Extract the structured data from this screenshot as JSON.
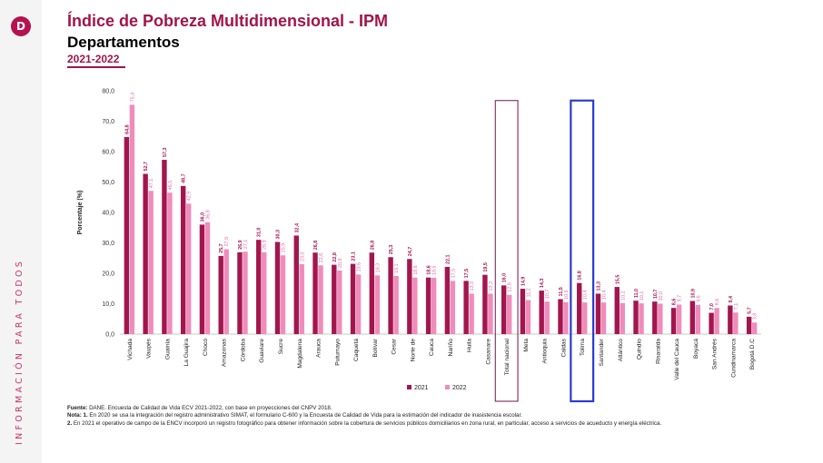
{
  "brand": {
    "logo_glyph": "D",
    "side_text": "INFORMACIÓN PARA TODOS",
    "accent_color": "#a0154a"
  },
  "header": {
    "title": "Índice de Pobreza Multidimensional - IPM",
    "subtitle": "Departamentos",
    "years": "2021-2022"
  },
  "chart_data": {
    "type": "bar",
    "ylabel": "Porcentaje (%)",
    "ylim": [
      0,
      80
    ],
    "yticks": [
      "0,0",
      "10,0",
      "20,0",
      "30,0",
      "40,0",
      "50,0",
      "60,0",
      "70,0",
      "80,0"
    ],
    "grid": false,
    "legend_position": "bottom",
    "categories": [
      "Vichada",
      "Vaupés",
      "Guainía",
      "La Guajira",
      "Chocó",
      "Amazonas",
      "Córdoba",
      "Guaviare",
      "Sucre",
      "Magdalena",
      "Arauca",
      "Putumayo",
      "Caquetá",
      "Bolívar",
      "Cesar",
      "Norte de",
      "Cauca",
      "Nariño",
      "Huila",
      "Casanare",
      "Total nacional",
      "Meta",
      "Antioquia",
      "Caldas",
      "Tolima",
      "Santander",
      "Atlántico",
      "Quindío",
      "Risaralda",
      "Valle del Cauca",
      "Boyacá",
      "San Andrés",
      "Cundinamarca",
      "Bogotá D.C"
    ],
    "highlighted": [
      "Total nacional",
      "Tolima"
    ],
    "highlight_colors": [
      "#7a2a5c",
      "#2b3ccf"
    ],
    "series": [
      {
        "name": "2021",
        "color": "#a3164d",
        "values": [
          64.8,
          52.7,
          57.3,
          48.7,
          36.0,
          25.7,
          26.9,
          31.0,
          30.3,
          32.4,
          26.8,
          22.8,
          23.1,
          26.8,
          25.3,
          24.7,
          18.6,
          22.1,
          17.5,
          19.5,
          16.0,
          14.9,
          14.3,
          11.5,
          16.8,
          13.3,
          15.5,
          11.0,
          10.7,
          8.6,
          10.9,
          7.0,
          9.4,
          5.7
        ],
        "labels": [
          "64,8",
          "52,7",
          "57,3",
          "48,7",
          "36,0",
          "25,7",
          "26,9",
          "31,0",
          "30,3",
          "32,4",
          "26,8",
          "22,8",
          "23,1",
          "26,8",
          "25,3",
          "24,7",
          "18,6",
          "22,1",
          "17,5",
          "19,5",
          "16,0",
          "14,9",
          "14,3",
          "11,5",
          "16,8",
          "13,3",
          "15,5",
          "11,0",
          "10,7",
          "8,6",
          "10,9",
          "7,0",
          "9,4",
          "5,7"
        ]
      },
      {
        "name": "2022",
        "color": "#f08cbb",
        "values": [
          75.4,
          47.1,
          46.5,
          42.9,
          36.8,
          27.9,
          27.1,
          26.9,
          25.9,
          23.0,
          22.6,
          20.9,
          19.6,
          19.3,
          19.1,
          18.6,
          18.5,
          17.5,
          13.3,
          13.3,
          12.9,
          11.2,
          10.7,
          10.5,
          10.4,
          10.4,
          10.2,
          10.1,
          10.0,
          9.7,
          9.6,
          8.6,
          7.1,
          3.8
        ],
        "labels": [
          "75,4",
          "47,1",
          "46,5",
          "42,9",
          "36,8",
          "27,9",
          "27,1",
          "26,9",
          "25,9",
          "23,0",
          "22,6",
          "20,9",
          "19,6",
          "19,3",
          "19,1",
          "18,6",
          "18,5",
          "17,5",
          "13,3",
          "13,3",
          "12,9",
          "11,2",
          "10,7",
          "10,5",
          "10,4",
          "10,4",
          "10,2",
          "10,1",
          "10,0",
          "9,7",
          "9,6",
          "8,6",
          "7,1",
          "3,8"
        ]
      }
    ]
  },
  "notes": {
    "source_label": "Fuente:",
    "source_text": " DANE. Encuesta de Calidad de Vida ECV 2021-2022, con base en proyecciones del CNPV 2018.",
    "note_label": "Nota: 1.",
    "note_1": " En 2020 se usa la integración del registro administrativo SIMAT, el formulario C-600 y la Encuesta de Calidad de Vida para la estimación del indicador de inasistencia escolar.",
    "note_2_label": "2.",
    "note_2": " En 2021 el operativo de campo de la ENCV incorporó un registro fotográfico para obtener información sobre la cobertura de servicios públicos domiciliarios en zona rural, en particular, acceso a servicios de acueducto y energía eléctrica."
  }
}
